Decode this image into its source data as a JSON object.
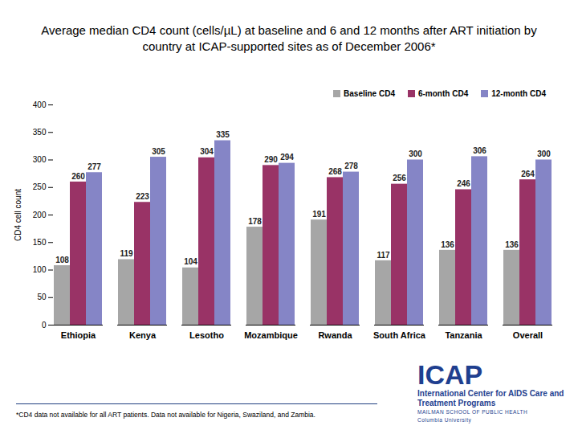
{
  "chart_data": {
    "type": "bar",
    "title": "Average median CD4 count (cells/µL) at baseline and 6 and 12 months after ART initiation by country at ICAP-supported sites as of December 2006*",
    "y_label": "CD4 cell count",
    "categories": [
      "Ethiopia",
      "Kenya",
      "Lesotho",
      "Mozambique",
      "Rwanda",
      "South Africa",
      "Tanzania",
      "Overall"
    ],
    "series": [
      {
        "name": "Baseline CD4",
        "color": "#a6a6a6",
        "values": [
          108,
          119,
          104,
          178,
          191,
          117,
          136,
          136
        ]
      },
      {
        "name": "6-month CD4",
        "color": "#993366",
        "values": [
          260,
          223,
          304,
          290,
          268,
          256,
          246,
          264
        ]
      },
      {
        "name": "12-month CD4",
        "color": "#8585c6",
        "values": [
          277,
          305,
          335,
          294,
          278,
          300,
          306,
          300
        ]
      }
    ],
    "ylim": [
      0,
      400
    ],
    "yticks": [
      0,
      50,
      100,
      150,
      200,
      250,
      300,
      350,
      400
    ],
    "grid": false,
    "legend": "top-right",
    "data_labels": true,
    "annotations": [
      "*CD4 data not available for all ART patients. Data not available for Nigeria, Swaziland, and Zambia.",
      "ICAP",
      "International Center for AIDS Care and Treatment Programs",
      "MAILMAN SCHOOL OF PUBLIC HEALTH",
      "Columbia University"
    ]
  }
}
